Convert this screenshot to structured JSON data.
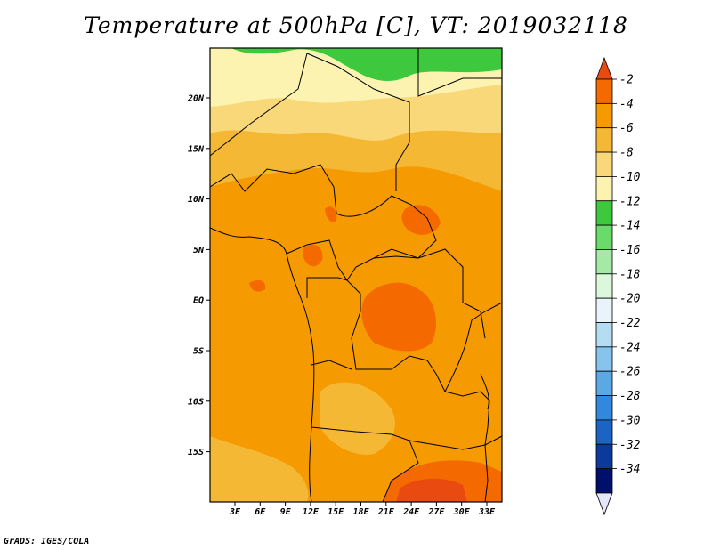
{
  "title": "Temperature at 500hPa [C], VT: 2019032118",
  "credit": "GrADS: IGES/COLA",
  "map": {
    "lat_ticks": [
      "20N",
      "15N",
      "10N",
      "5N",
      "EQ",
      "5S",
      "10S",
      "15S"
    ],
    "lon_ticks": [
      "3E",
      "6E",
      "9E",
      "12E",
      "15E",
      "18E",
      "21E",
      "24E",
      "27E",
      "30E",
      "33E"
    ]
  },
  "colorbar": {
    "labels": [
      "-2",
      "-4",
      "-6",
      "-8",
      "-10",
      "-12",
      "-14",
      "-16",
      "-18",
      "-20",
      "-22",
      "-24",
      "-26",
      "-28",
      "-30",
      "-32",
      "-34"
    ],
    "colors": [
      "#e84a10",
      "#f56a00",
      "#f59a00",
      "#f5b835",
      "#f8d878",
      "#fcf3b0",
      "#3ec83e",
      "#6ada6a",
      "#a4eaa4",
      "#dcf8dc",
      "#e8f4fa",
      "#b4dcf2",
      "#86c4ec",
      "#5aa8e4",
      "#3288dc",
      "#1c64c4",
      "#0c3a9c",
      "#000e6c",
      "#e6e6fa"
    ]
  }
}
